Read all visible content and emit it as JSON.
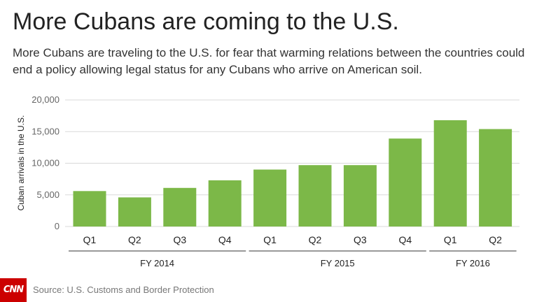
{
  "header": {
    "title": "More Cubans are coming to the U.S.",
    "subtitle": "More Cubans are traveling to the U.S. for fear that warming relations between the countries could end a policy allowing legal status for any Cubans who arrive on American soil."
  },
  "footer": {
    "logo_text": "CNN",
    "source": "Source: U.S. Customs and Border Protection"
  },
  "colors": {
    "bar": "#7cb848",
    "grid": "#d9d9d9",
    "logo": "#cc0000"
  },
  "chart_data": {
    "type": "bar",
    "title": "More Cubans are coming to the U.S.",
    "ylabel": "Cuban arrivals in the U.S.",
    "xlabel": "",
    "ylim": [
      0,
      20000
    ],
    "yticks": [
      0,
      5000,
      10000,
      15000,
      20000
    ],
    "ytick_labels": [
      "0",
      "5,000",
      "10,000",
      "15,000",
      "20,000"
    ],
    "grid": true,
    "categories": [
      "Q1",
      "Q2",
      "Q3",
      "Q4",
      "Q1",
      "Q2",
      "Q3",
      "Q4",
      "Q1",
      "Q2"
    ],
    "groups": [
      {
        "label": "FY 2014",
        "start": 0,
        "end": 3
      },
      {
        "label": "FY 2015",
        "start": 4,
        "end": 7
      },
      {
        "label": "FY 2016",
        "start": 8,
        "end": 9
      }
    ],
    "values": [
      5600,
      4600,
      6100,
      7300,
      9000,
      9700,
      9700,
      13900,
      16800,
      15400
    ]
  }
}
